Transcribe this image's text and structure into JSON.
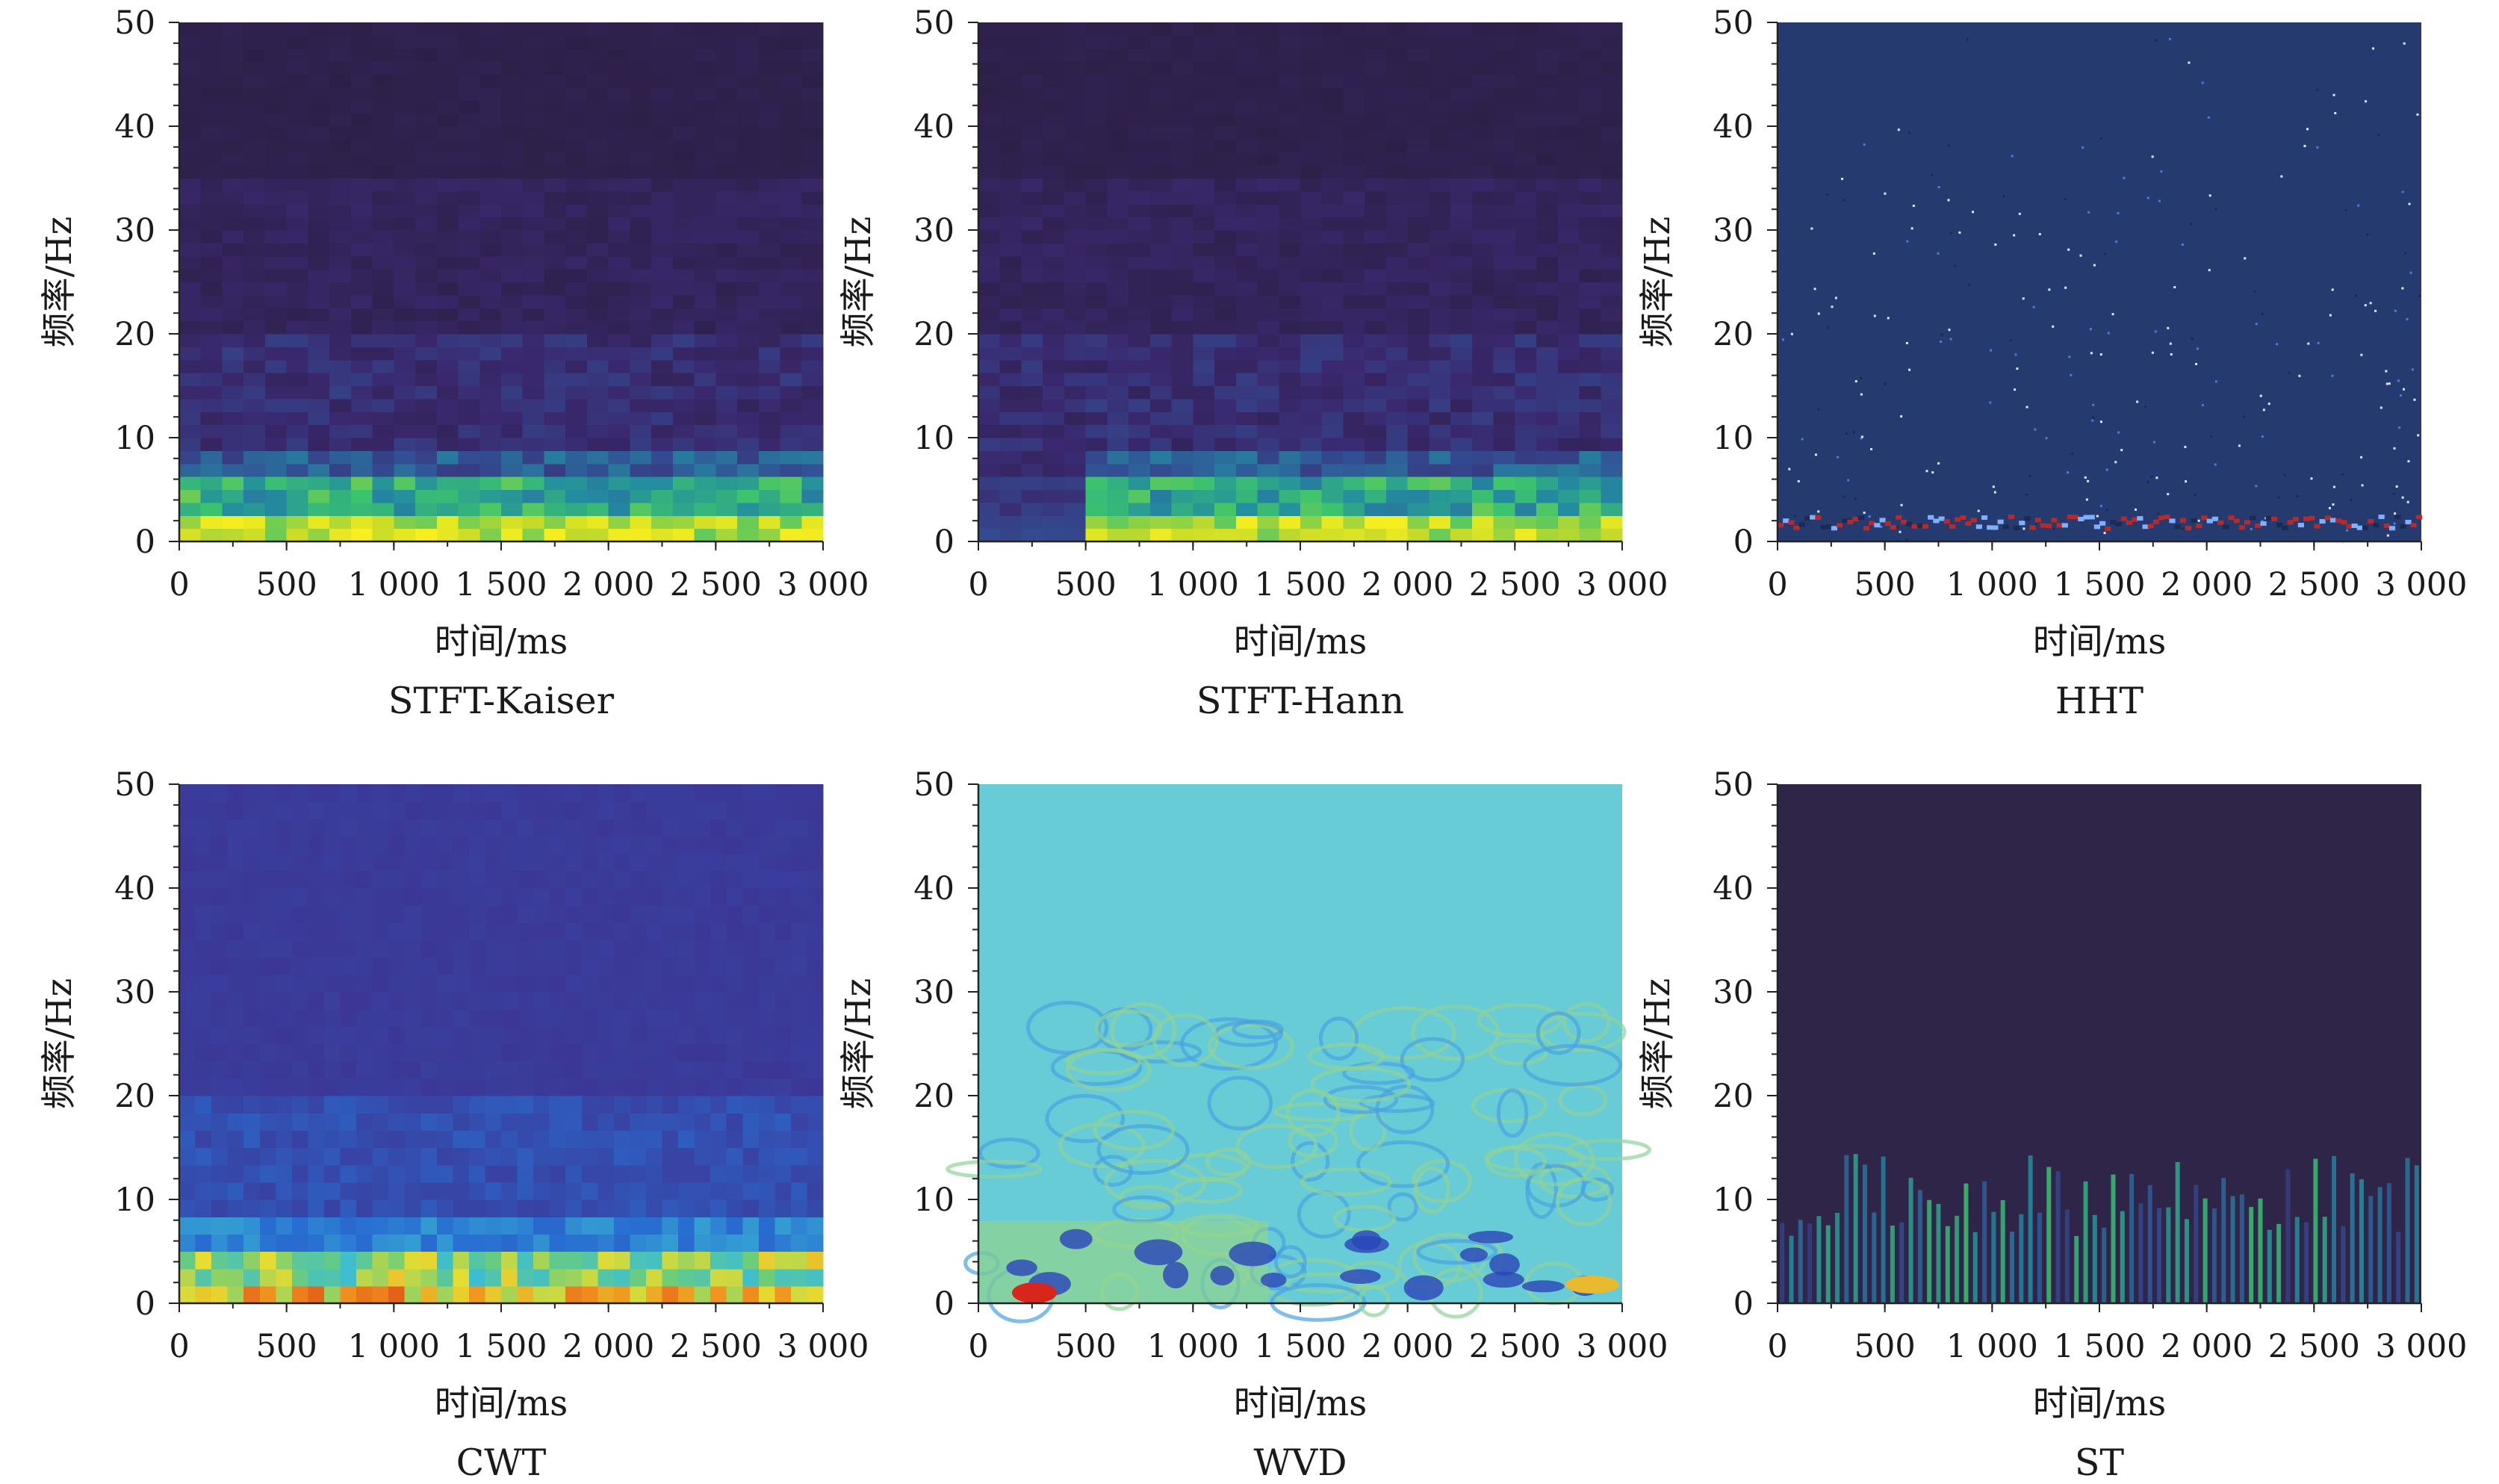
{
  "chart_data": [
    {
      "type": "heatmap",
      "title": "STFT-Kaiser",
      "xlabel": "时间/ms",
      "ylabel": "频率/Hz",
      "xlim": [
        0,
        3000
      ],
      "ylim": [
        0,
        50
      ],
      "xticks": [
        "0",
        "500",
        "1 000",
        "1 500",
        "2 000",
        "2 500",
        "3 000"
      ],
      "yticks": [
        "0",
        "10",
        "20",
        "30",
        "40",
        "50"
      ],
      "colormap": "parula",
      "grid": false
    },
    {
      "type": "heatmap",
      "title": "STFT-Hann",
      "xlabel": "时间/ms",
      "ylabel": "频率/Hz",
      "xlim": [
        0,
        3000
      ],
      "ylim": [
        0,
        50
      ],
      "xticks": [
        "0",
        "500",
        "1 000",
        "1 500",
        "2 000",
        "2 500",
        "3 000"
      ],
      "yticks": [
        "0",
        "10",
        "20",
        "30",
        "40",
        "50"
      ],
      "colormap": "parula",
      "grid": false
    },
    {
      "type": "heatmap",
      "title": "HHT",
      "xlabel": "时间/ms",
      "ylabel": "频率/Hz",
      "xlim": [
        0,
        3000
      ],
      "ylim": [
        0,
        50
      ],
      "xticks": [
        "0",
        "500",
        "1 000",
        "1 500",
        "2 000",
        "2 500",
        "3 000"
      ],
      "yticks": [
        "0",
        "10",
        "20",
        "30",
        "40",
        "50"
      ],
      "colormap": "sparse-points",
      "grid": false
    },
    {
      "type": "heatmap",
      "title": "CWT",
      "xlabel": "时间/ms",
      "ylabel": "频率/Hz",
      "xlim": [
        0,
        3000
      ],
      "ylim": [
        0,
        50
      ],
      "xticks": [
        "0",
        "500",
        "1 000",
        "1 500",
        "2 000",
        "2 500",
        "3 000"
      ],
      "yticks": [
        "0",
        "10",
        "20",
        "30",
        "40",
        "50"
      ],
      "colormap": "jet",
      "grid": false
    },
    {
      "type": "heatmap",
      "title": "WVD",
      "xlabel": "时间/ms",
      "ylabel": "频率/Hz",
      "xlim": [
        0,
        3000
      ],
      "ylim": [
        0,
        50
      ],
      "xticks": [
        "0",
        "500",
        "1 000",
        "1 500",
        "2 000",
        "2 500",
        "3 000"
      ],
      "yticks": [
        "0",
        "10",
        "20",
        "30",
        "40",
        "50"
      ],
      "colormap": "jet",
      "grid": false
    },
    {
      "type": "heatmap",
      "title": "ST",
      "xlabel": "时间/ms",
      "ylabel": "频率/Hz",
      "xlim": [
        0,
        3000
      ],
      "ylim": [
        0,
        50
      ],
      "xticks": [
        "0",
        "500",
        "1 000",
        "1 500",
        "2 000",
        "2 500",
        "3 000"
      ],
      "yticks": [
        "0",
        "10",
        "20",
        "30",
        "40",
        "50"
      ],
      "colormap": "parula",
      "grid": false
    }
  ]
}
